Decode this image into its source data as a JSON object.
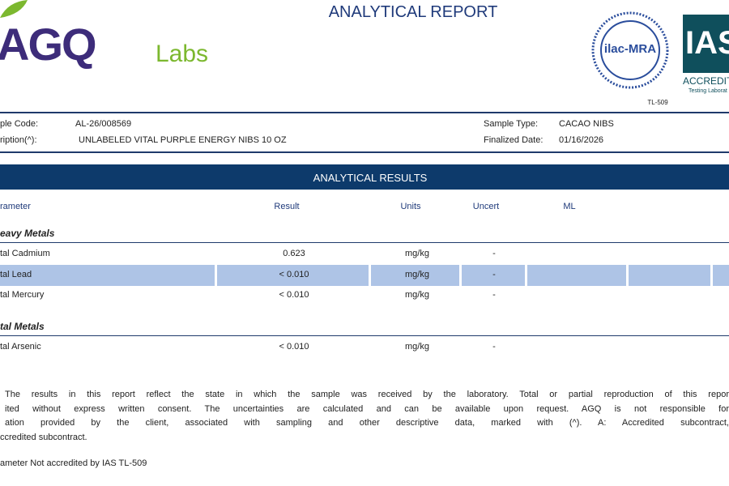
{
  "header": {
    "logo_main": "AGQ",
    "logo_sub": "Labs",
    "title": "ANALYTICAL REPORT",
    "ilac": "ilac-MRA",
    "ilac_code": "TL-509",
    "ias": "IAS",
    "ias_sub1": "ACCREDIT",
    "ias_sub2": "Testing Laborat"
  },
  "sample": {
    "rows": [
      [
        "ple Code:",
        "AL-26/008569",
        "Sample Type:",
        "CACAO NIBS"
      ],
      [
        "ription(^):",
        "UNLABELED VITAL PURPLE ENERGY NIBS 10 OZ",
        "Finalized Date:",
        "01/16/2026"
      ]
    ]
  },
  "results": {
    "banner": "ANALYTICAL RESULTS",
    "columns": [
      "rameter",
      "Result",
      "Units",
      "Uncert",
      "ML"
    ],
    "groups": [
      {
        "name": "eavy Metals",
        "rows": [
          [
            "tal Cadmium",
            "0.623",
            "mg/kg",
            "-"
          ],
          [
            "tal Lead",
            "< 0.010",
            "mg/kg",
            "-"
          ],
          [
            "tal Mercury",
            "< 0.010",
            "mg/kg",
            "-"
          ]
        ]
      },
      {
        "name": "tal Metals",
        "rows": [
          [
            "tal Arsenic",
            "< 0.010",
            "mg/kg",
            "-"
          ]
        ]
      }
    ]
  },
  "footnotes": {
    "lines": [
      "The results in this report reflect the state in which the sample was received by the laboratory. Total or partial reproduction of this repor",
      "ited without express written consent. The uncertainties are calculated and can be available upon request. AGQ is not responsible for",
      "ation provided by the client, associated with sampling and other descriptive data, marked with (^). A: Accredited subcontract,",
      "ccredited subcontract."
    ],
    "note": "ameter Not accredited by IAS TL-509"
  }
}
